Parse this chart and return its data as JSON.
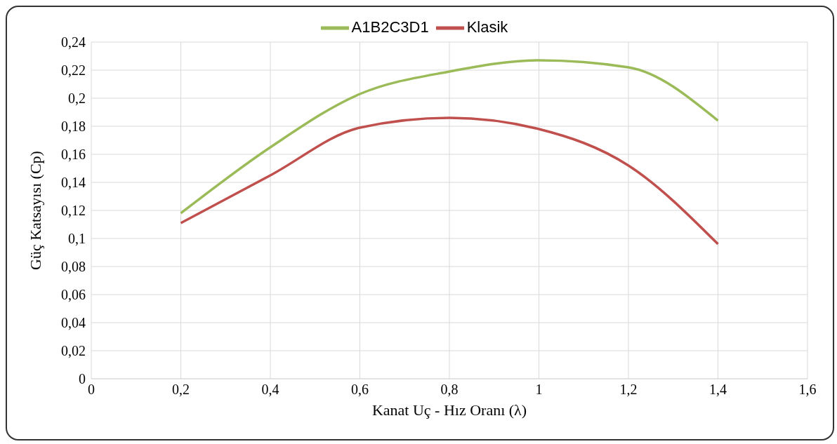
{
  "chart_data": {
    "type": "line",
    "xlabel": "Kanat Uç - Hız Oranı (λ)",
    "ylabel": "Güç Katsayısı (Cp)",
    "x": [
      0.2,
      0.4,
      0.6,
      0.8,
      1.0,
      1.2,
      1.4
    ],
    "series": [
      {
        "name": "Klasik",
        "color": "#c0504d",
        "values": [
          0.111,
          0.145,
          0.179,
          0.186,
          0.178,
          0.152,
          0.096
        ]
      },
      {
        "name": "A1B2C3D1",
        "color": "#9bbb59",
        "values": [
          0.118,
          0.165,
          0.203,
          0.219,
          0.227,
          0.222,
          0.184
        ]
      }
    ],
    "xlim": [
      0,
      1.6
    ],
    "xticks": [
      0,
      {
        "value": 0.2,
        "label": "0,2"
      },
      {
        "value": 0.4,
        "label": "0,4"
      },
      {
        "value": 0.6,
        "label": "0,6"
      },
      {
        "value": 0.8,
        "label": "0,8"
      },
      1,
      {
        "value": 1.2,
        "label": "1,2"
      },
      {
        "value": 1.4,
        "label": "1,4"
      },
      {
        "value": 1.6,
        "label": "1,6"
      }
    ],
    "ylim": [
      0,
      0.24
    ],
    "yticks": [
      0,
      {
        "value": 0.02,
        "label": "0,02"
      },
      {
        "value": 0.04,
        "label": "0,04"
      },
      {
        "value": 0.06,
        "label": "0,06"
      },
      {
        "value": 0.08,
        "label": "0,08"
      },
      {
        "value": 0.1,
        "label": "0,1"
      },
      {
        "value": 0.12,
        "label": "0,12"
      },
      {
        "value": 0.14,
        "label": "0,14"
      },
      {
        "value": 0.16,
        "label": "0,16"
      },
      {
        "value": 0.18,
        "label": "0,18"
      },
      {
        "value": 0.2,
        "label": "0,2"
      },
      {
        "value": 0.22,
        "label": "0,22"
      },
      {
        "value": 0.24,
        "label": "0,24"
      }
    ],
    "grid": true,
    "legend": "top",
    "marker": "none",
    "line_style": "solid"
  }
}
